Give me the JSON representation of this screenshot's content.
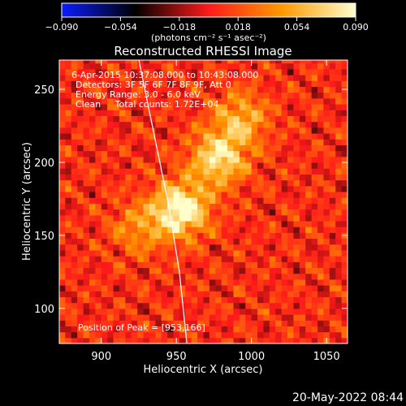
{
  "chart_data": {
    "type": "heatmap",
    "title": "Reconstructed RHESSI Image",
    "xlabel": "Heliocentric X (arcsec)",
    "ylabel": "Heliocentric Y (arcsec)",
    "xlim": [
      872,
      1064
    ],
    "ylim": [
      76,
      270
    ],
    "x_ticks": [
      900,
      950,
      1000,
      1050
    ],
    "y_ticks": [
      100,
      150,
      200,
      250
    ],
    "colorbar": {
      "range": [
        -0.09,
        0.09
      ],
      "ticks": [
        "−0.090",
        "−0.054",
        "−0.018",
        "0.018",
        "0.054",
        "0.090"
      ],
      "units": "(photons cm⁻² s⁻¹ asec⁻²)",
      "colormap": [
        "#0b1cff",
        "#000000",
        "#ff1a1a",
        "#ff9a00",
        "#ffffcc"
      ]
    },
    "annotations": [
      "6-Apr-2015 10:37:08.000 to 10:43:08.000",
      "Detectors: 3F 5F 6F 7F 8F 9F, Att 0",
      "Energy Range: 3.0 - 6.0 keV",
      "Clean     Total counts: 1.72E+04"
    ],
    "peak_label": "Position of Peak = [953,166]",
    "peak": [
      953,
      166
    ],
    "sources": [
      {
        "x": 953,
        "y": 168,
        "peak": 0.09
      },
      {
        "x": 978,
        "y": 203,
        "peak": 0.072
      },
      {
        "x": 993,
        "y": 230,
        "peak": 0.05
      },
      {
        "x": 925,
        "y": 155,
        "peak": 0.035
      }
    ],
    "limb": [
      [
        925,
        270
      ],
      [
        935,
        220
      ],
      [
        945,
        170
      ],
      [
        952,
        125
      ],
      [
        957,
        76
      ]
    ]
  },
  "footer": {
    "timestamp": "20-May-2022 08:44"
  }
}
